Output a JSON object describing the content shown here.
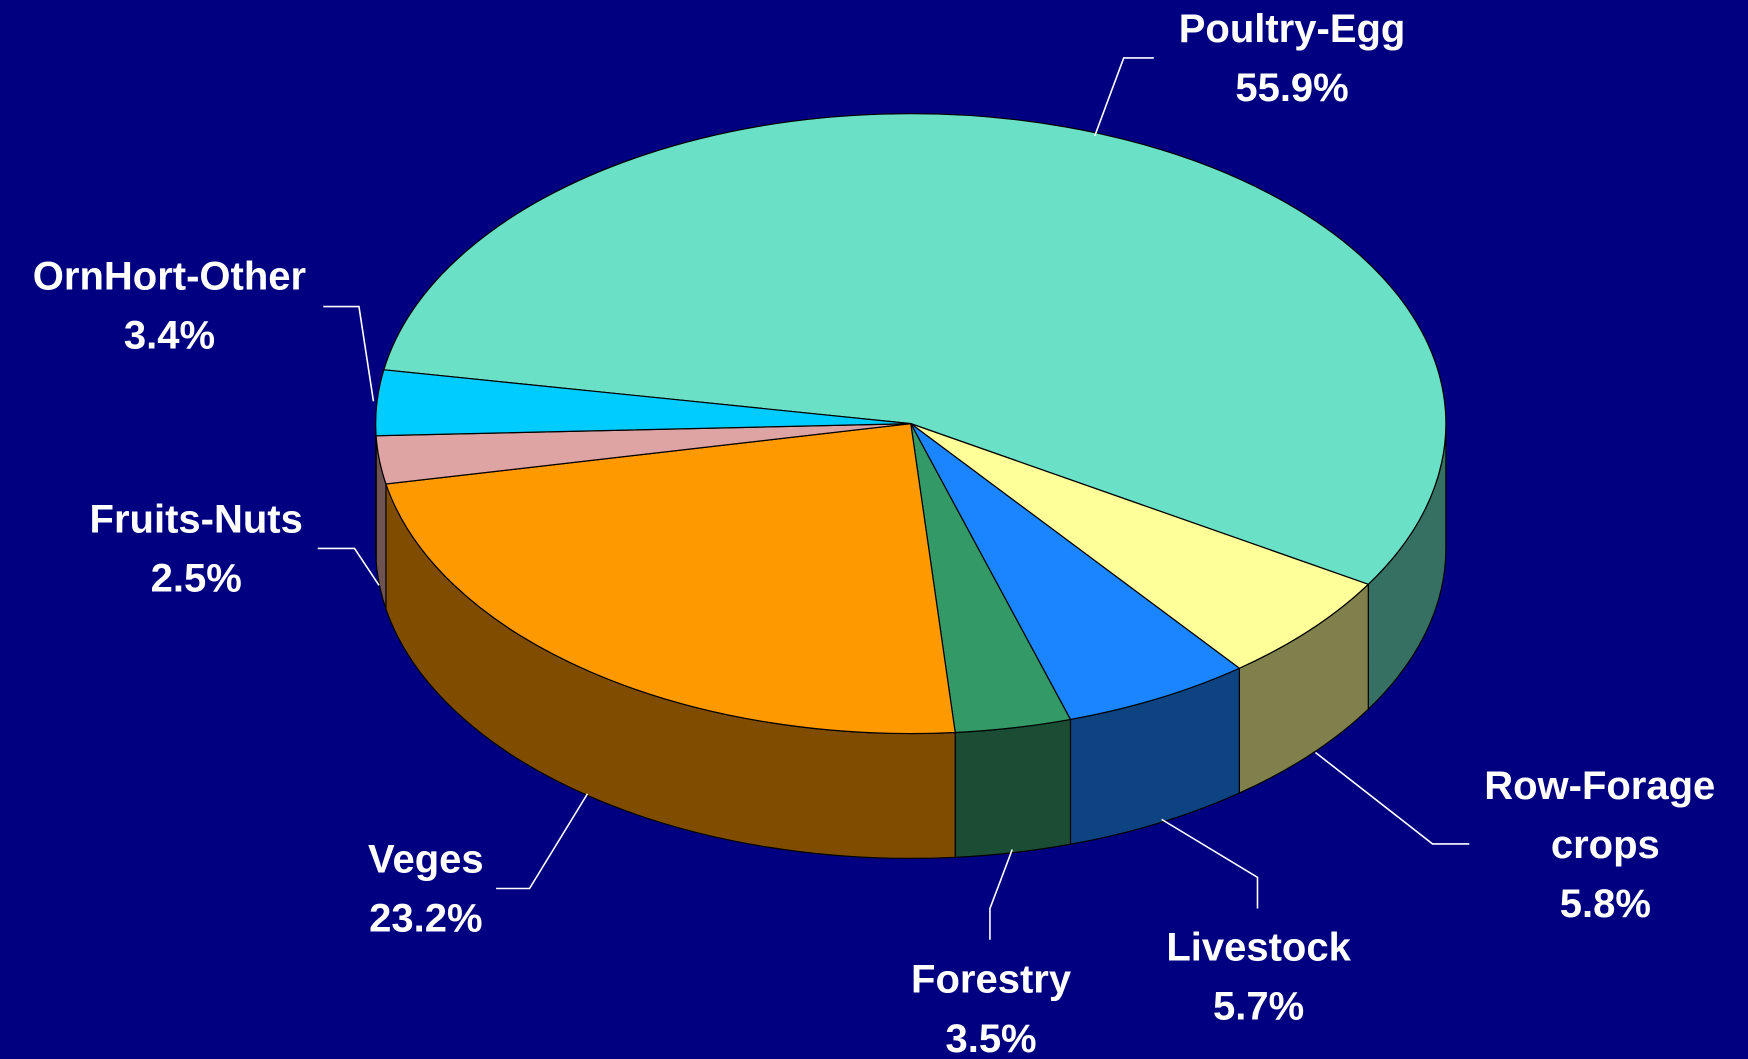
{
  "chart_data": {
    "type": "pie",
    "categories": [
      "Poultry-Egg",
      "Row-Forage crops",
      "Livestock",
      "Forestry",
      "Veges",
      "Fruits-Nuts",
      "OrnHort-Other"
    ],
    "values": [
      55.9,
      5.8,
      5.7,
      3.5,
      23.2,
      2.5,
      3.4
    ],
    "value_labels": [
      "55.9%",
      "5.8%",
      "5.7%",
      "3.5%",
      "23.2%",
      "2.5%",
      "3.4%"
    ],
    "colors": [
      "#6ae0c6",
      "#ffff99",
      "#1a85ff",
      "#339966",
      "#ff9900",
      "#dea3a3",
      "#00ccff"
    ]
  }
}
